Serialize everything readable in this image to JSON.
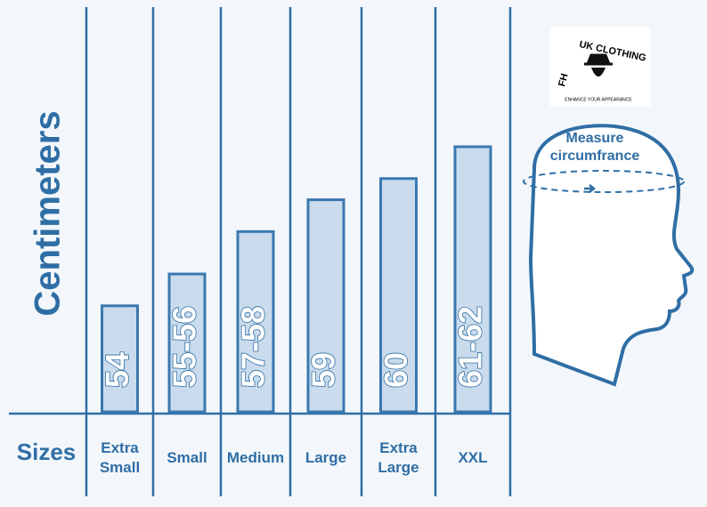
{
  "chart_data": {
    "type": "bar",
    "y_label": "Centimeters",
    "x_label": "Sizes",
    "categories": [
      "Extra Small",
      "Small",
      "Medium",
      "Large",
      "Extra Large",
      "XXL"
    ],
    "values": [
      54,
      55.5,
      57.5,
      59,
      60,
      61.5
    ],
    "value_labels": [
      "54",
      "55-56",
      "57-58",
      "59",
      "60",
      "61-62"
    ],
    "ylim": [
      49,
      68
    ],
    "color": "#c9dbec",
    "edge_color": "#3b78b0",
    "annotation": "Measure circumfrance",
    "logo": {
      "left": "FH",
      "brand": "UK CLOTHING",
      "tagline": "ENHANCE YOUR APPEARANCE"
    }
  }
}
